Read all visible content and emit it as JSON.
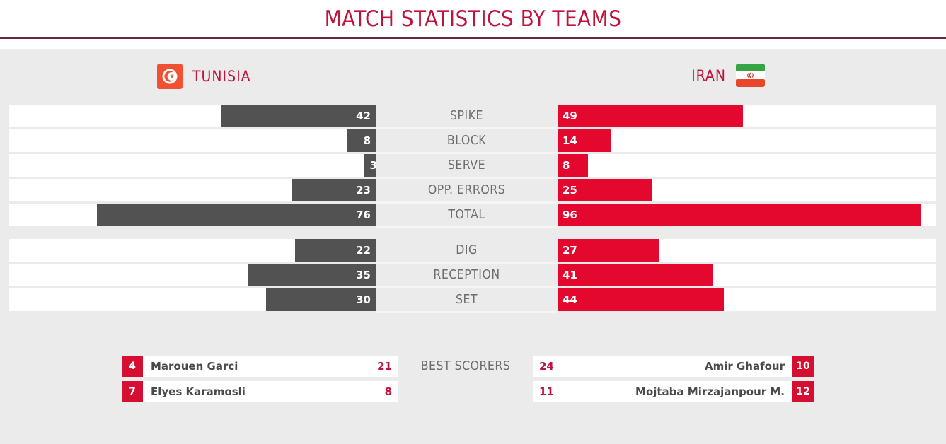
{
  "title": "MATCH STATISTICS BY TEAMS",
  "teams": {
    "left": {
      "name": "TUNISIA",
      "flag_icon": "tunisia-flag"
    },
    "right": {
      "name": "IRAN",
      "flag_icon": "iran-flag"
    }
  },
  "chart_data": {
    "type": "bar",
    "orientation": "horizontal_mirrored",
    "max": 100,
    "categories": [
      "SPIKE",
      "BLOCK",
      "SERVE",
      "OPP. ERRORS",
      "TOTAL",
      "DIG",
      "RECEPTION",
      "SET"
    ],
    "group_break_index": 5,
    "series": [
      {
        "name": "TUNISIA",
        "side": "left",
        "color": "#525252",
        "values": [
          42,
          8,
          3,
          23,
          76,
          22,
          35,
          30
        ]
      },
      {
        "name": "IRAN",
        "side": "right",
        "color": "#e4082f",
        "values": [
          49,
          14,
          8,
          25,
          96,
          27,
          41,
          44
        ]
      }
    ]
  },
  "best_scorers": {
    "label": "BEST SCORERS",
    "left": [
      {
        "jersey": "4",
        "name": "Marouen Garci",
        "points": "21"
      },
      {
        "jersey": "7",
        "name": "Elyes Karamosli",
        "points": "8"
      }
    ],
    "right": [
      {
        "jersey": "10",
        "name": "Amir Ghafour",
        "points": "24"
      },
      {
        "jersey": "12",
        "name": "Mojtaba Mirzajanpour M.",
        "points": "11"
      }
    ]
  },
  "colors": {
    "bar_red": "#e4082f",
    "bar_gray": "#525252",
    "crimson_text": "#c0123a",
    "badge_red": "#d60e32",
    "divider_maroon": "#6b2737",
    "background_gray": "#ebebeb",
    "track_white": "#ffffff"
  }
}
